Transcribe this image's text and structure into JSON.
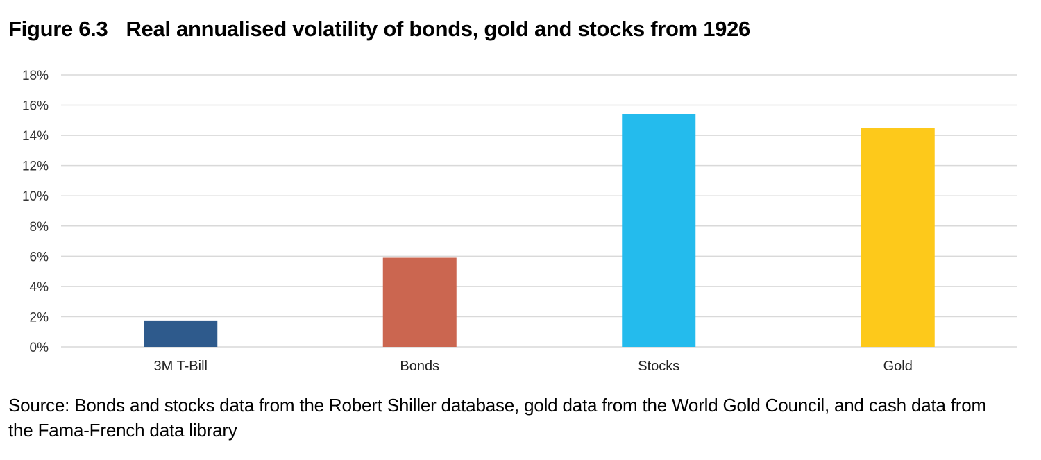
{
  "chart_data": {
    "type": "bar",
    "title_number": "Figure 6.3",
    "title": "Real annualised volatility of bonds, gold and stocks from 1926",
    "categories": [
      "3M T-Bill",
      "Bonds",
      "Stocks",
      "Gold"
    ],
    "values": [
      1.75,
      5.9,
      15.4,
      14.5
    ],
    "colors": [
      "#2e5a8c",
      "#cb6650",
      "#24bbed",
      "#fdc91b"
    ],
    "xlabel": "",
    "ylabel": "",
    "ylim": [
      0,
      18
    ],
    "yticks": [
      0,
      2,
      4,
      6,
      8,
      10,
      12,
      14,
      16,
      18
    ],
    "ytick_labels": [
      "0%",
      "2%",
      "4%",
      "6%",
      "8%",
      "10%",
      "12%",
      "14%",
      "16%",
      "18%"
    ],
    "grid": true,
    "legend": "none"
  },
  "source": "Source: Bonds and stocks data from the Robert Shiller database, gold data from the World Gold Council, and cash data from the Fama-French data library"
}
